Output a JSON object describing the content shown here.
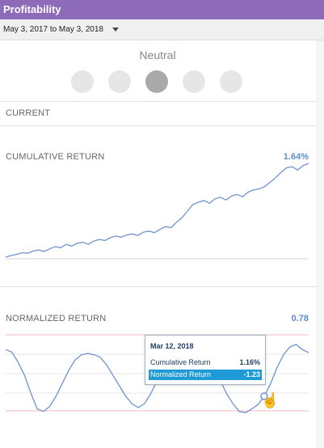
{
  "header": {
    "title": "Profitability"
  },
  "date_range": {
    "label": "May 3, 2017 to May 3, 2018"
  },
  "sentiment": {
    "label": "Neutral",
    "levels": 5,
    "selected_index": 2
  },
  "current": {
    "label": "CURRENT"
  },
  "cumulative": {
    "label": "CUMULATIVE RETURN",
    "value": "1.64%"
  },
  "normalized": {
    "label": "NORMALIZED RETURN",
    "value": "0.78"
  },
  "tooltip": {
    "date": "Mar 12, 2018",
    "rows": [
      {
        "label": "Cumulative Return",
        "value": "1.16%"
      },
      {
        "label": "Normalized Return",
        "value": "-1.23"
      }
    ]
  },
  "colors": {
    "header_bg": "#8e6bb8",
    "line": "#6f93cf",
    "accent_value": "#5b8bd0",
    "band_line": "#f2b8c0",
    "tooltip_highlight": "#1e9ad6"
  },
  "chart_data": [
    {
      "type": "line",
      "ylabel": "",
      "series": [
        {
          "values": [
            -0.05,
            -0.02,
            0.0,
            0.03,
            0.02,
            0.06,
            0.08,
            0.05,
            0.1,
            0.14,
            0.12,
            0.18,
            0.15,
            0.2,
            0.22,
            0.18,
            0.24,
            0.27,
            0.25,
            0.3,
            0.33,
            0.31,
            0.35,
            0.37,
            0.34,
            0.4,
            0.42,
            0.39,
            0.45,
            0.5,
            0.48,
            0.58,
            0.66,
            0.78,
            0.9,
            0.94,
            0.97,
            0.92,
            1.0,
            1.03,
            0.98,
            1.05,
            1.08,
            1.04,
            1.12,
            1.16,
            1.18,
            1.22,
            1.3,
            1.38,
            1.48,
            1.56,
            1.58,
            1.52,
            1.6,
            1.64
          ]
        }
      ]
    },
    {
      "type": "line",
      "ylabel": "",
      "series": [
        {
          "values": [
            0.9,
            0.8,
            0.4,
            -0.1,
            -0.8,
            -1.4,
            -1.5,
            -1.3,
            -0.9,
            -0.4,
            0.1,
            0.5,
            0.7,
            0.75,
            0.7,
            0.6,
            0.3,
            -0.1,
            -0.5,
            -0.9,
            -1.2,
            -1.35,
            -1.2,
            -0.8,
            -0.3,
            0.2,
            0.6,
            0.9,
            1.2,
            1.4,
            1.3,
            1.0,
            0.6,
            0.2,
            -0.3,
            -0.8,
            -1.2,
            -1.5,
            -1.55,
            -1.4,
            -1.23,
            -0.9,
            -0.4,
            0.2,
            0.7,
            1.0,
            1.1,
            0.9,
            0.78
          ]
        }
      ]
    }
  ]
}
